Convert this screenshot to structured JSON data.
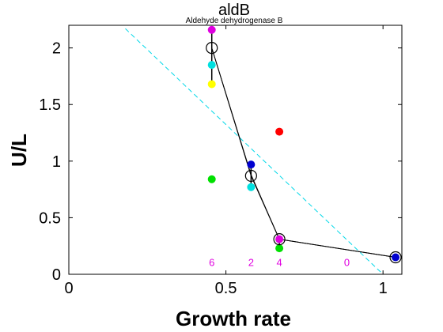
{
  "chart_data": {
    "type": "scatter",
    "title": "aldB",
    "subtitle": "Aldehyde dehydrogenase B",
    "xlabel": "Growth rate",
    "ylabel": "U/L",
    "xlim": [
      0,
      1.06
    ],
    "ylim": [
      0,
      2.2
    ],
    "xticks": [
      0,
      0.5,
      1
    ],
    "xtick_labels": [
      "0",
      "0.5",
      "1"
    ],
    "yticks": [
      0,
      0.5,
      1,
      1.5,
      2
    ],
    "ytick_labels": [
      "0",
      "0.5",
      "1",
      "1.5",
      "2"
    ],
    "grid": false,
    "points": [
      {
        "x": 0.455,
        "y": 2.16,
        "color": "#e000e0"
      },
      {
        "x": 0.455,
        "y": 1.85,
        "color": "#00e0e0"
      },
      {
        "x": 0.455,
        "y": 1.68,
        "color": "#ffff00"
      },
      {
        "x": 0.455,
        "y": 0.84,
        "color": "#00e000"
      },
      {
        "x": 0.58,
        "y": 0.97,
        "color": "#0000d0"
      },
      {
        "x": 0.58,
        "y": 0.77,
        "color": "#00e0e0"
      },
      {
        "x": 0.67,
        "y": 1.26,
        "color": "#ff0000"
      },
      {
        "x": 0.67,
        "y": 0.31,
        "color": "#e000e0"
      },
      {
        "x": 0.67,
        "y": 0.23,
        "color": "#00e000"
      },
      {
        "x": 1.04,
        "y": 0.15,
        "color": "#0000d0"
      }
    ],
    "mean_line": {
      "x": [
        0.455,
        0.58,
        0.67,
        1.04
      ],
      "y": [
        2.0,
        0.87,
        0.31,
        0.15
      ],
      "color": "#000000"
    },
    "error_bars": [
      {
        "x": 0.455,
        "low": 1.68,
        "high": 2.16
      },
      {
        "x": 0.58,
        "low": 0.77,
        "high": 0.97
      },
      {
        "x": 0.67,
        "low": 0.23,
        "high": 0.31
      },
      {
        "x": 1.04,
        "low": 0.14,
        "high": 0.16
      }
    ],
    "extra_line": {
      "x": [
        0.455,
        0.58,
        0.67,
        1.04
      ],
      "y": [
        2.0,
        0.88,
        0.31,
        0.15
      ],
      "color": "#000000"
    },
    "fit_line": {
      "x": [
        0.18,
        1.0
      ],
      "y": [
        2.17,
        0.0
      ],
      "color": "#00d8e8",
      "style": "dashed"
    },
    "annotations": [
      {
        "text": "6",
        "x": 0.455,
        "y": 0.1,
        "color": "#e000e0"
      },
      {
        "text": "2",
        "x": 0.58,
        "y": 0.1,
        "color": "#e000e0"
      },
      {
        "text": "4",
        "x": 0.67,
        "y": 0.1,
        "color": "#e000e0"
      },
      {
        "text": "0",
        "x": 0.885,
        "y": 0.1,
        "color": "#e000e0"
      }
    ]
  }
}
